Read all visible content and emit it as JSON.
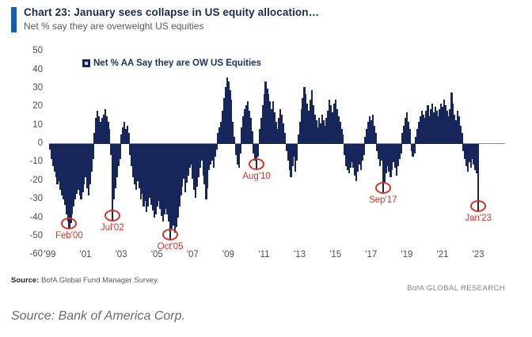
{
  "header": {
    "title": "Chart 23: January sees collapse in US equity allocation…",
    "subtitle": "Net % say they are overweight US equities"
  },
  "legend": {
    "label": "Net % AA Say they are OW US Equities"
  },
  "chart_data": {
    "type": "bar",
    "title": "Chart 23: January sees collapse in US equity allocation…",
    "series_name": "Net % AA Say they are OW US Equities",
    "frequency": "monthly",
    "start_month": "1999-01",
    "end_month": "2023-01",
    "ylim": [
      -60,
      50
    ],
    "y_ticks": [
      50,
      40,
      30,
      20,
      10,
      0,
      -10,
      -20,
      -30,
      -40,
      -50,
      -60
    ],
    "x_tick_labels": [
      "'99",
      "'01",
      "'03",
      "'05",
      "'07",
      "'09",
      "'11",
      "'13",
      "'15",
      "'17",
      "'19",
      "'21",
      "'23"
    ],
    "x_tick_years": [
      1999,
      2001,
      2003,
      2005,
      2007,
      2009,
      2011,
      2013,
      2015,
      2017,
      2019,
      2021,
      2023
    ],
    "grid": false,
    "legend_position": "top-left",
    "bar_color": "#17265a",
    "values": [
      -3,
      -8,
      -12,
      -15,
      -18,
      -22,
      -20,
      -25,
      -28,
      -30,
      -33,
      -38,
      -42,
      -46,
      -43,
      -38,
      -34,
      -30,
      -27,
      -25,
      -28,
      -30,
      -26,
      -22,
      -18,
      -24,
      -28,
      -22,
      -15,
      -8,
      6,
      14,
      18,
      15,
      12,
      14,
      16,
      19,
      15,
      12,
      8,
      -6,
      -42,
      -30,
      -24,
      -18,
      -12,
      -8,
      5,
      9,
      12,
      8,
      10,
      6,
      -6,
      -12,
      -18,
      -22,
      -25,
      -20,
      -24,
      -30,
      -27,
      -34,
      -31,
      -37,
      -34,
      -29,
      -33,
      -36,
      -40,
      -38,
      -34,
      -31,
      -35,
      -39,
      -42,
      -38,
      -35,
      -38,
      -42,
      -52,
      -46,
      -44,
      -48,
      -45,
      -40,
      -34,
      -28,
      -23,
      -19,
      -26,
      -21,
      -17,
      -13,
      -11,
      -19,
      -25,
      -29,
      -23,
      -18,
      -13,
      -9,
      -17,
      -22,
      -30,
      -24,
      -14,
      -11,
      -9,
      -13,
      -7,
      -3,
      6,
      9,
      12,
      18,
      25,
      31,
      36,
      34,
      29,
      24,
      12,
      4,
      -6,
      -11,
      -13,
      -5,
      9,
      15,
      19,
      21,
      23,
      18,
      14,
      7,
      -5,
      -9,
      -14,
      -7,
      8,
      14,
      21,
      27,
      34,
      30,
      27,
      23,
      19,
      23,
      17,
      12,
      8,
      14,
      19,
      16,
      11,
      6,
      -4,
      -9,
      -14,
      -18,
      -12,
      -7,
      -15,
      -9,
      5,
      12,
      19,
      25,
      31,
      27,
      22,
      18,
      24,
      29,
      21,
      16,
      13,
      9,
      14,
      11,
      16,
      13,
      10,
      14,
      18,
      24,
      21,
      17,
      22,
      24,
      19,
      15,
      12,
      8,
      5,
      -6,
      -12,
      -14,
      -16,
      -13,
      -10,
      -13,
      -17,
      -20,
      -15,
      -11,
      -14,
      -9,
      -6,
      4,
      8,
      12,
      15,
      13,
      16,
      10,
      6,
      -4,
      -8,
      -12,
      -9,
      -27,
      -21,
      -16,
      -12,
      -15,
      -18,
      -14,
      -10,
      -13,
      -17,
      -12,
      -8,
      -5,
      6,
      10,
      14,
      17,
      12,
      8,
      -4,
      -7,
      -5,
      4,
      8,
      12,
      15,
      18,
      16,
      14,
      18,
      21,
      15,
      19,
      22,
      17,
      20,
      18,
      15,
      19,
      22,
      20,
      24,
      21,
      18,
      15,
      19,
      28,
      22,
      16,
      13,
      18,
      15,
      10,
      6,
      -4,
      -8,
      -12,
      -15,
      -10,
      -13,
      -8,
      -11,
      -14,
      -16,
      -37
    ],
    "annotations": [
      {
        "label": "Feb'00",
        "month": "2000-02",
        "value": -46
      },
      {
        "label": "Jul'02",
        "month": "2002-07",
        "value": -42
      },
      {
        "label": "Oct'05",
        "month": "2005-10",
        "value": -52
      },
      {
        "label": "Aug'10",
        "month": "2010-08",
        "value": -14
      },
      {
        "label": "Sep'17",
        "month": "2017-09",
        "value": -27
      },
      {
        "label": "Jan'23",
        "month": "2023-01",
        "value": -37
      }
    ]
  },
  "footer": {
    "source_label": "Source:",
    "source_text": "BofA Global Fund Manager Survey.",
    "brand": "BofA GLOBAL RESEARCH"
  },
  "caption": "Source: Bank of America Corp.",
  "colors": {
    "accent_blue": "#1460aa",
    "bar_navy": "#17265a",
    "annotation_red": "#d93025",
    "title_navy": "#1b2a4e",
    "text_gray": "#595959"
  }
}
